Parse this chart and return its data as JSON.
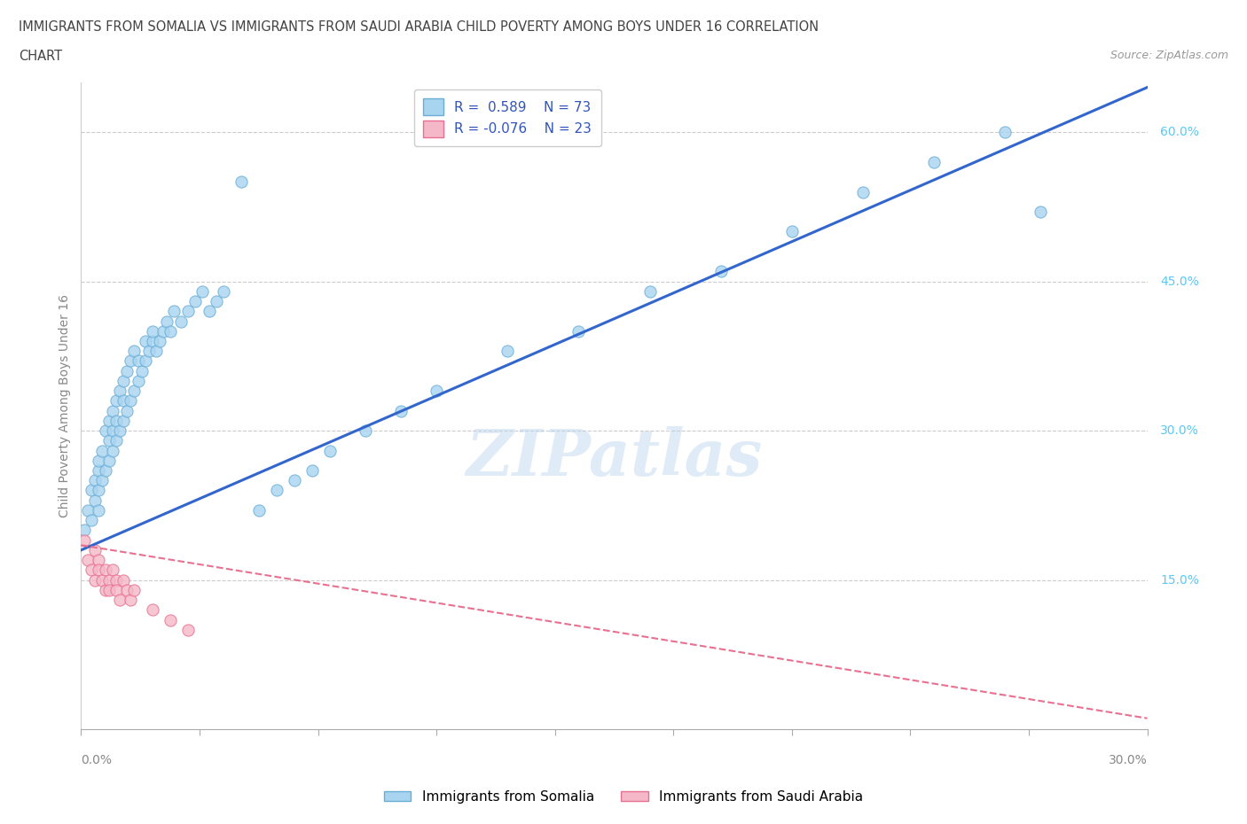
{
  "title_line1": "IMMIGRANTS FROM SOMALIA VS IMMIGRANTS FROM SAUDI ARABIA CHILD POVERTY AMONG BOYS UNDER 16 CORRELATION",
  "title_line2": "CHART",
  "source": "Source: ZipAtlas.com",
  "ylabel": "Child Poverty Among Boys Under 16",
  "xlim": [
    0.0,
    0.3
  ],
  "ylim": [
    0.0,
    0.65
  ],
  "somalia_color": "#A8D4F0",
  "somalia_edge_color": "#6AAED6",
  "saudi_color": "#F5B8C8",
  "saudi_edge_color": "#E87090",
  "somalia_line_color": "#3366CC",
  "saudi_line_color": "#E87090",
  "r_somalia": 0.589,
  "n_somalia": 73,
  "r_saudi": -0.076,
  "n_saudi": 23,
  "watermark": "ZIPatlas",
  "legend_somalia": "Immigrants from Somalia",
  "legend_saudi": "Immigrants from Saudi Arabia",
  "somalia_x": [
    0.001,
    0.002,
    0.003,
    0.003,
    0.004,
    0.004,
    0.005,
    0.005,
    0.005,
    0.005,
    0.006,
    0.006,
    0.007,
    0.007,
    0.008,
    0.008,
    0.008,
    0.009,
    0.009,
    0.009,
    0.01,
    0.01,
    0.01,
    0.011,
    0.011,
    0.012,
    0.012,
    0.012,
    0.013,
    0.013,
    0.014,
    0.014,
    0.015,
    0.015,
    0.016,
    0.016,
    0.017,
    0.018,
    0.018,
    0.019,
    0.02,
    0.02,
    0.021,
    0.022,
    0.023,
    0.024,
    0.025,
    0.026,
    0.028,
    0.03,
    0.032,
    0.034,
    0.036,
    0.038,
    0.04,
    0.045,
    0.05,
    0.055,
    0.06,
    0.065,
    0.07,
    0.08,
    0.09,
    0.1,
    0.12,
    0.14,
    0.16,
    0.18,
    0.2,
    0.22,
    0.24,
    0.26,
    0.27
  ],
  "somalia_y": [
    0.2,
    0.22,
    0.24,
    0.21,
    0.25,
    0.23,
    0.26,
    0.24,
    0.27,
    0.22,
    0.25,
    0.28,
    0.26,
    0.3,
    0.27,
    0.29,
    0.31,
    0.28,
    0.3,
    0.32,
    0.29,
    0.31,
    0.33,
    0.3,
    0.34,
    0.31,
    0.35,
    0.33,
    0.32,
    0.36,
    0.33,
    0.37,
    0.34,
    0.38,
    0.35,
    0.37,
    0.36,
    0.37,
    0.39,
    0.38,
    0.39,
    0.4,
    0.38,
    0.39,
    0.4,
    0.41,
    0.4,
    0.42,
    0.41,
    0.42,
    0.43,
    0.44,
    0.42,
    0.43,
    0.44,
    0.55,
    0.22,
    0.24,
    0.25,
    0.26,
    0.28,
    0.3,
    0.32,
    0.34,
    0.38,
    0.4,
    0.44,
    0.46,
    0.5,
    0.54,
    0.57,
    0.6,
    0.52
  ],
  "saudi_x": [
    0.001,
    0.002,
    0.003,
    0.004,
    0.004,
    0.005,
    0.005,
    0.006,
    0.007,
    0.007,
    0.008,
    0.008,
    0.009,
    0.01,
    0.01,
    0.011,
    0.012,
    0.013,
    0.014,
    0.015,
    0.02,
    0.025,
    0.03
  ],
  "saudi_y": [
    0.19,
    0.17,
    0.16,
    0.18,
    0.15,
    0.17,
    0.16,
    0.15,
    0.16,
    0.14,
    0.15,
    0.14,
    0.16,
    0.15,
    0.14,
    0.13,
    0.15,
    0.14,
    0.13,
    0.14,
    0.12,
    0.11,
    0.1
  ],
  "grid_yticks": [
    0.15,
    0.3,
    0.45,
    0.6
  ],
  "right_ytick_vals": [
    0.15,
    0.3,
    0.45,
    0.6
  ],
  "right_ytick_labels": [
    "15.0%",
    "30.0%",
    "45.0%",
    "60.0%"
  ],
  "background_color": "#ffffff",
  "blue_trend_intercept": 0.18,
  "blue_trend_slope": 1.55,
  "pink_trend_intercept": 0.185,
  "pink_trend_slope": -0.58
}
